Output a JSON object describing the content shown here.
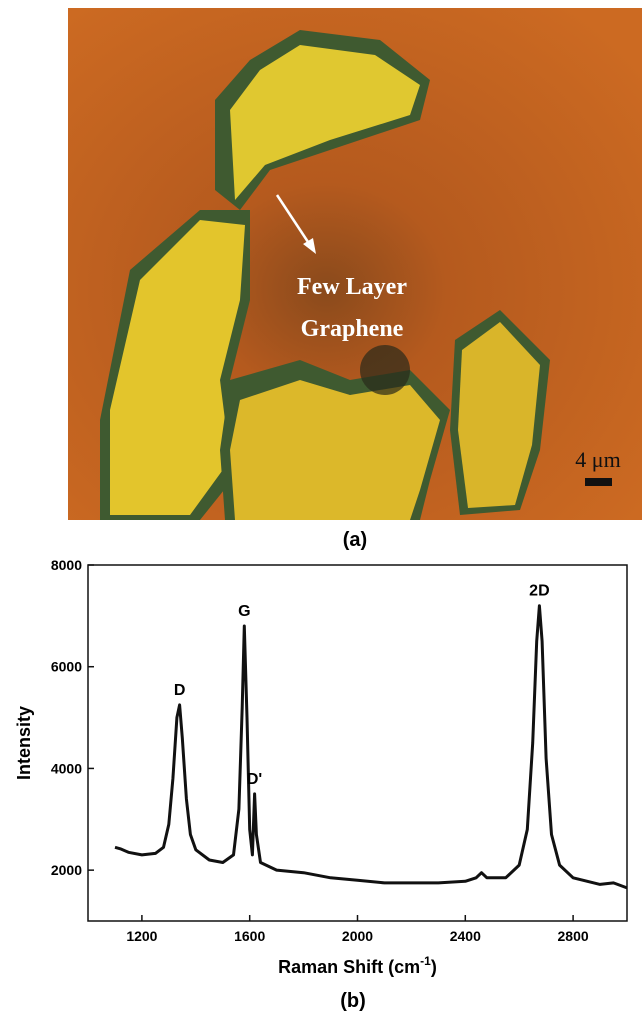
{
  "image": {
    "annotation_line1": "Few Layer",
    "annotation_line2": "Graphene",
    "scale_bar": "4 μm",
    "label": "(a)"
  },
  "chart_data": {
    "type": "line",
    "label": "(b)",
    "xlabel": {
      "text": "Raman Shift (cm",
      "superscript": "-1",
      "suffix": ")"
    },
    "ylabel": "Intensity",
    "xlim": [
      1000,
      3000
    ],
    "xticks": [
      1200,
      1600,
      2000,
      2400,
      2800
    ],
    "ylim": [
      1000,
      8000
    ],
    "yticks": [
      2000,
      4000,
      6000,
      8000
    ],
    "x": [
      1100,
      1120,
      1150,
      1200,
      1250,
      1280,
      1300,
      1315,
      1330,
      1340,
      1350,
      1365,
      1380,
      1400,
      1450,
      1500,
      1540,
      1560,
      1572,
      1580,
      1590,
      1600,
      1610,
      1618,
      1625,
      1640,
      1700,
      1800,
      1900,
      2000,
      2100,
      2200,
      2300,
      2400,
      2440,
      2460,
      2480,
      2550,
      2600,
      2630,
      2650,
      2665,
      2675,
      2685,
      2700,
      2720,
      2750,
      2800,
      2900,
      2950,
      3000
    ],
    "series": [
      {
        "color": "#111111",
        "values": [
          2450,
          2420,
          2350,
          2300,
          2330,
          2450,
          2900,
          3800,
          5000,
          5250,
          4600,
          3400,
          2700,
          2400,
          2200,
          2150,
          2300,
          3200,
          5200,
          6800,
          5000,
          2800,
          2300,
          3500,
          2700,
          2150,
          2000,
          1950,
          1850,
          1800,
          1750,
          1750,
          1750,
          1780,
          1850,
          1950,
          1850,
          1850,
          2100,
          2800,
          4500,
          6500,
          7200,
          6500,
          4200,
          2700,
          2100,
          1850,
          1720,
          1750,
          1650
        ]
      }
    ],
    "annotations": [
      {
        "text": "D",
        "x": 1340,
        "y": 5250
      },
      {
        "text": "G",
        "x": 1580,
        "y": 6800
      },
      {
        "text": "D'",
        "x": 1618,
        "y": 3500
      },
      {
        "text": "2D",
        "x": 2675,
        "y": 7200
      }
    ]
  }
}
